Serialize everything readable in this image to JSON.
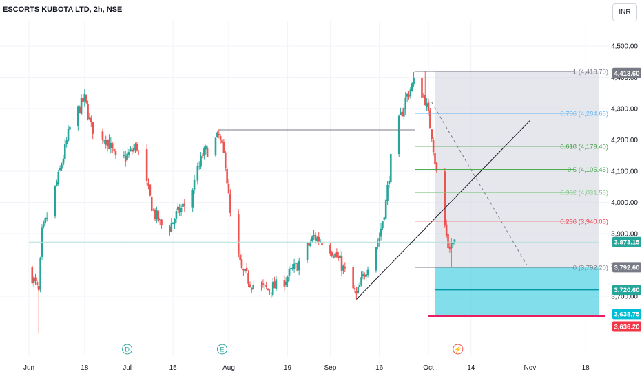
{
  "title": "ESCORTS KUBOTA LTD, 2h, NSE",
  "currency_button": "INR",
  "colors": {
    "up": "#26a69a",
    "down": "#ef5350",
    "bg": "#ffffff",
    "grid": "#f0f3fa",
    "axis_text": "#131722",
    "fib_1": "#787b86",
    "fib_0786": "#64b5f6",
    "fib_0618": "#43a047",
    "fib_05": "#4caf50",
    "fib_0382": "#81c784",
    "fib_0236": "#f23645",
    "fib_0": "#787b86",
    "stop_zone": "#d1d4dc",
    "target_zone": "#4dd0e1",
    "red_line": "#e91e63"
  },
  "chart_data": {
    "type": "candlestick",
    "symbol": "ESCORTS KUBOTA LTD",
    "interval": "2h",
    "exchange": "NSE",
    "x_ticks": [
      "Jun",
      "18",
      "Jul",
      "15",
      "Aug",
      "19",
      "Sep",
      "16",
      "Oct",
      "14",
      "Nov",
      "18"
    ],
    "y_ticks": [
      "4,500.00",
      "4,400.00",
      "4,300.00",
      "4,200.00",
      "4,100.00",
      "4,000.00",
      "3,900.00",
      "3,800.00",
      "3,700.00"
    ],
    "ylim": [
      3600,
      4560
    ],
    "price_path": [
      {
        "t": "Jun 1",
        "price": 3790
      },
      {
        "t": "Jun 4",
        "price": 3710
      },
      {
        "t": "Jun 5",
        "price": 3900
      },
      {
        "t": "Jun 10",
        "price": 4080
      },
      {
        "t": "Jun 14",
        "price": 4260
      },
      {
        "t": "Jun 18",
        "price": 4330
      },
      {
        "t": "Jun 20",
        "price": 4240
      },
      {
        "t": "Jun 25",
        "price": 4200
      },
      {
        "t": "Jun 28",
        "price": 4120
      },
      {
        "t": "Jul 4",
        "price": 4180
      },
      {
        "t": "Jul 9",
        "price": 3970
      },
      {
        "t": "Jul 13",
        "price": 3900
      },
      {
        "t": "Jul 16",
        "price": 3960
      },
      {
        "t": "Jul 20",
        "price": 4010
      },
      {
        "t": "Jul 24",
        "price": 4150
      },
      {
        "t": "Jul 29",
        "price": 4210
      },
      {
        "t": "Jul 31",
        "price": 4130
      },
      {
        "t": "Aug 2",
        "price": 3900
      },
      {
        "t": "Aug 5",
        "price": 3780
      },
      {
        "t": "Aug 8",
        "price": 3740
      },
      {
        "t": "Aug 13",
        "price": 3720
      },
      {
        "t": "Aug 17",
        "price": 3740
      },
      {
        "t": "Aug 22",
        "price": 3800
      },
      {
        "t": "Aug 27",
        "price": 3890
      },
      {
        "t": "Aug 31",
        "price": 3870
      },
      {
        "t": "Sep 4",
        "price": 3810
      },
      {
        "t": "Sep 9",
        "price": 3700
      },
      {
        "t": "Sep 12",
        "price": 3790
      },
      {
        "t": "Sep 16",
        "price": 3890
      },
      {
        "t": "Sep 18",
        "price": 4000
      },
      {
        "t": "Sep 20",
        "price": 4180
      },
      {
        "t": "Sep 24",
        "price": 4330
      },
      {
        "t": "Sep 27",
        "price": 4395
      },
      {
        "t": "Sep 30",
        "price": 4330
      },
      {
        "t": "Oct 2",
        "price": 4220
      },
      {
        "t": "Oct 4",
        "price": 4050
      },
      {
        "t": "Oct 7",
        "price": 3860
      },
      {
        "t": "Oct 9",
        "price": 3873.15
      }
    ],
    "extremes": [
      {
        "t": "Jun 4",
        "low": 3580
      },
      {
        "t": "Jun 21",
        "high": 4410
      },
      {
        "t": "Sep 30",
        "high": 4418.7
      },
      {
        "t": "Oct 8",
        "low": 3792.2
      }
    ],
    "fib_levels": [
      {
        "ratio": "1",
        "price": 4418.7,
        "label": "1 (4,418.70)"
      },
      {
        "ratio": "0.786",
        "price": 4284.65,
        "label": "0.786 (4,284.65)"
      },
      {
        "ratio": "0.618",
        "price": 4179.4,
        "label": "0.618 (4,179.40)"
      },
      {
        "ratio": "0.5",
        "price": 4105.45,
        "label": "0.5 (4,105.45)"
      },
      {
        "ratio": "0.382",
        "price": 4031.55,
        "label": "0.382 (4,031.55)"
      },
      {
        "ratio": "0.236",
        "price": 3940.05,
        "label": "0.236 (3,940.05)"
      },
      {
        "ratio": "0",
        "price": 3792.2,
        "label": "0 (3,792.20)"
      }
    ],
    "price_labels": [
      {
        "value": 4413.6,
        "text": "4,413.60",
        "color": "#787b86"
      },
      {
        "value": 3873.15,
        "text": "3,873.15",
        "color": "#26a69a"
      },
      {
        "value": 3792.6,
        "text": "3,792.60",
        "color": "#787b86"
      },
      {
        "value": 3720.6,
        "text": "3,720.60",
        "color": "#26a69a"
      },
      {
        "value": 3638.75,
        "text": "3,638.75",
        "color": "#00bcd4"
      },
      {
        "value": 3636.2,
        "text": "3,636.20",
        "color": "#f23645"
      }
    ],
    "horizontal_lines": [
      {
        "t_from": "Jul 29",
        "t_to": "Sep 27",
        "price": 4232,
        "color": "#787b86"
      },
      {
        "t_from": "Jun 1",
        "t_to": "Nov 22",
        "price": 3873.15,
        "color": "#b2dfdb"
      }
    ],
    "trendline": {
      "t_from": "Sep 9",
      "price_from": 3690,
      "t_to": "Nov 1",
      "price_to": 4262
    },
    "dashed_line": {
      "t_from": "Oct 2",
      "price_from": 4320,
      "t_to": "Oct 31",
      "price_to": 3800
    },
    "stop_zone": {
      "t_from": "Oct 3",
      "t_to": "Nov 22",
      "price_top": 4418.7,
      "price_bottom": 3792.6
    },
    "target_zone": {
      "t_from": "Oct 3",
      "t_to": "Nov 22",
      "price_top": 3792.6,
      "price_bottom": 3638.75
    },
    "target_line": {
      "t_from": "Oct 3",
      "t_to": "Nov 22",
      "price": 3720.6
    },
    "red_line": {
      "t_from": "Oct 1",
      "t_to": "Nov 24",
      "price": 3636.2
    },
    "events": [
      {
        "t": "Jul 1",
        "letter": "D",
        "color": "#26a69a"
      },
      {
        "t": "Jul 30",
        "letter": "E",
        "color": "#26a69a"
      },
      {
        "t": "Oct 10",
        "letter": "⚡",
        "color": "#ef5350"
      }
    ]
  }
}
